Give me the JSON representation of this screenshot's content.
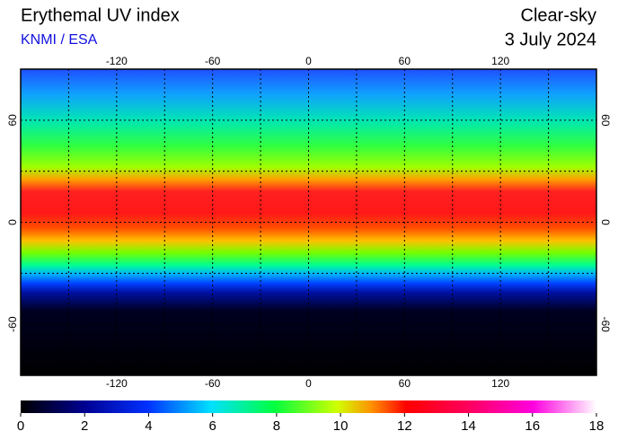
{
  "header": {
    "title": "Erythemal UV index",
    "source": "KNMI / ESA",
    "condition": "Clear-sky",
    "date": "3 July 2024"
  },
  "map": {
    "lon_range": [
      -180,
      180
    ],
    "lat_range": [
      -90,
      90
    ],
    "lon_ticks": [
      -120,
      -60,
      0,
      60,
      120
    ],
    "lat_ticks": [
      60,
      0,
      -60
    ],
    "grid_step": 30
  },
  "colorbar": {
    "range": [
      0,
      18
    ],
    "ticks": [
      0,
      2,
      4,
      6,
      8,
      10,
      12,
      14,
      16,
      18
    ]
  }
}
